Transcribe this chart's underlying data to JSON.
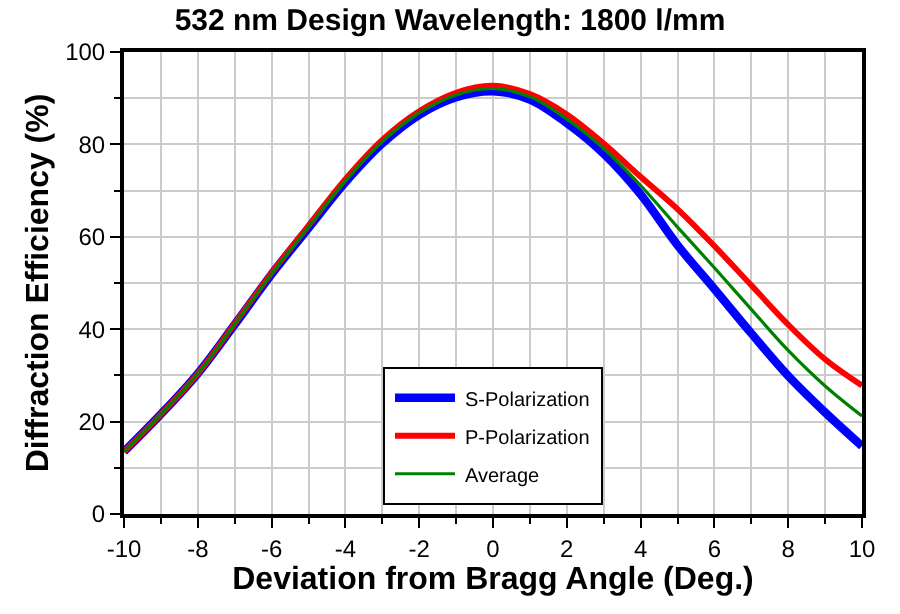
{
  "chart_data": {
    "type": "line",
    "title": "532 nm Design Wavelength: 1800 l/mm",
    "xlabel": "Deviation from Bragg Angle (Deg.)",
    "ylabel": "Diffraction Efficiency (%)",
    "x": [
      -10,
      -9,
      -8,
      -7,
      -6,
      -5,
      -4,
      -3,
      -2,
      -1,
      0,
      1,
      2,
      3,
      4,
      5,
      6,
      7,
      8,
      9,
      10
    ],
    "series": [
      {
        "name": "S-Polarization",
        "color": "#0000ff",
        "values": [
          13.5,
          21.6,
          30.4,
          41,
          51.9,
          61.9,
          71.8,
          80.2,
          86.4,
          90.2,
          91.5,
          89.7,
          84.6,
          78,
          69.2,
          58.2,
          48.7,
          39.1,
          29.9,
          22,
          14.7
        ]
      },
      {
        "name": "P-Polarization",
        "color": "#ff0000",
        "values": [
          13.5,
          21.6,
          30.4,
          41.2,
          52.2,
          62.4,
          72.5,
          81,
          87.2,
          91.2,
          92.7,
          90.9,
          86.5,
          80.2,
          73,
          66,
          58,
          49.5,
          41,
          33.5,
          27.8
        ]
      },
      {
        "name": "Average",
        "color": "#008000",
        "values": [
          13.5,
          21.6,
          30.4,
          41.1,
          52,
          62.1,
          72.1,
          80.6,
          86.8,
          90.7,
          92.1,
          90.3,
          85.5,
          79.1,
          71.1,
          62.1,
          53.3,
          44.3,
          35.4,
          27.7,
          21.2
        ]
      }
    ],
    "xlim": [
      -10,
      10
    ],
    "xticks": [
      -10,
      -8,
      -6,
      -4,
      -2,
      0,
      2,
      4,
      6,
      8,
      10
    ],
    "ylim": [
      0,
      100
    ],
    "yticks": [
      0,
      20,
      40,
      60,
      80,
      100
    ],
    "grid": true,
    "legend": "bottom",
    "marker": "none",
    "line_style": "solid"
  }
}
